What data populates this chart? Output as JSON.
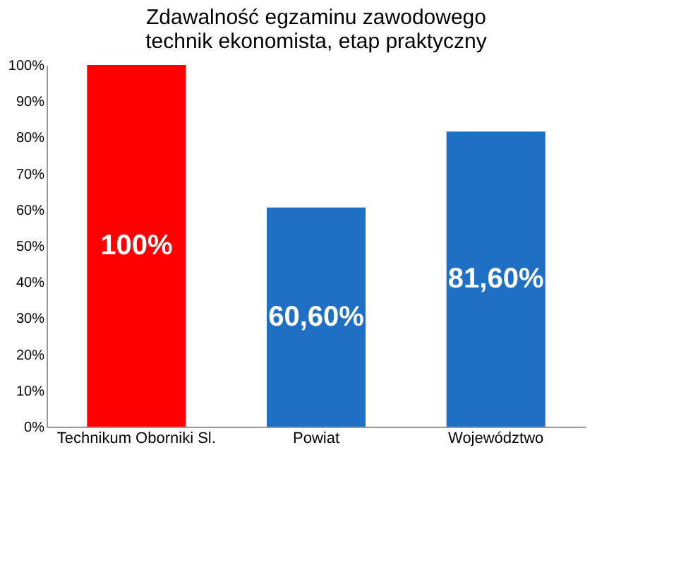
{
  "chart_data": {
    "type": "bar",
    "title": [
      "Zdawalność egzaminu zawodowego",
      "technik ekonomista, etap praktyczny"
    ],
    "categories": [
      "Technikum Oborniki Sl.",
      "Powiat",
      "Województwo"
    ],
    "values": [
      100,
      60.6,
      81.6
    ],
    "colors": [
      "#ff0000",
      "#1f6fc5",
      "#1f6fc5"
    ],
    "value_labels": [
      "100%",
      "60,60%",
      "81,60%"
    ],
    "ylim": [
      0,
      100
    ],
    "yticks": [
      {
        "value": 0,
        "label": "0%"
      },
      {
        "value": 10,
        "label": "10%"
      },
      {
        "value": 20,
        "label": "20%"
      },
      {
        "value": 30,
        "label": "30%"
      },
      {
        "value": 40,
        "label": "40%"
      },
      {
        "value": 50,
        "label": "50%"
      },
      {
        "value": 60,
        "label": "60%"
      },
      {
        "value": 70,
        "label": "70%"
      },
      {
        "value": 80,
        "label": "80%"
      },
      {
        "value": 90,
        "label": "90%"
      },
      {
        "value": 100,
        "label": "100%"
      }
    ],
    "grid": false
  }
}
